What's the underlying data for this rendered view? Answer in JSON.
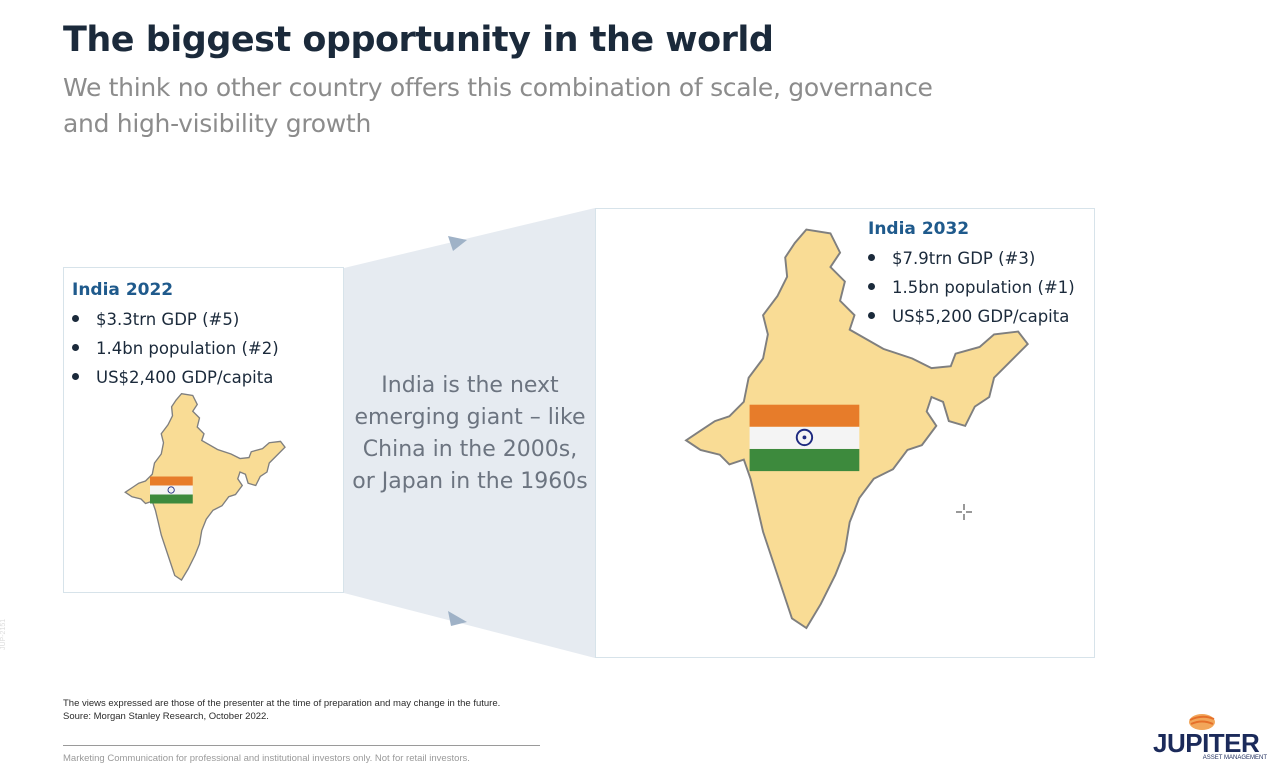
{
  "title": "The biggest opportunity in the world",
  "subtitle": "We think no other country offers this combination of scale, governance and high-visibility growth",
  "left_card": {
    "heading": "India 2022",
    "items": [
      "$3.3trn GDP (#5)",
      "1.4bn population (#2)",
      "US$2,400 GDP/capita"
    ]
  },
  "middle_text": "India is the next emerging giant – like China in the 2000s, or Japan in the 1960s",
  "right_card": {
    "heading": "India 2032",
    "items": [
      "$7.9trn GDP (#3)",
      "1.5bn population (#1)",
      "US$5,200 GDP/capita"
    ]
  },
  "footnotes": {
    "views": "The views expressed are those of the presenter at the time of preparation and may change in the future.",
    "source": "Soure: Morgan Stanley Research, October 2022."
  },
  "footer_text": "Marketing Communication for professional and institutional investors only. Not for retail investors.",
  "side_code": "JUP-2151",
  "logo": {
    "word": "JUPITER",
    "sub": "ASSET MANAGEMENT"
  },
  "colors": {
    "map_fill": "#f9dc95",
    "map_stroke": "#7f7f7f",
    "heading_blue": "#1f5a8c",
    "connector_fill": "#e6ebf1",
    "arrow": "#9fb2c7",
    "flag_saffron": "#e77c2a",
    "flag_white": "#f4f4f4",
    "flag_green": "#3d8a3d",
    "chakra": "#1e2a80"
  },
  "icons": {
    "bullet": "bullet-dot-icon",
    "arrow_top": "triangle-arrow-icon",
    "arrow_bottom": "triangle-arrow-icon",
    "cursor": "crosshair-cursor-icon"
  }
}
